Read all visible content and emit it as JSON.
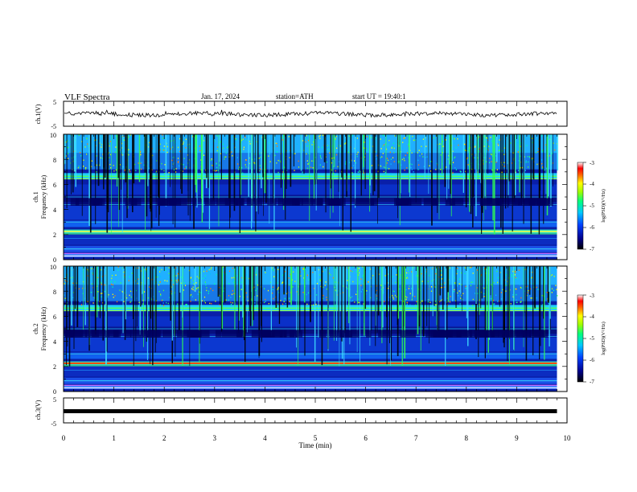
{
  "header": {
    "title": "VLF Spectra",
    "date": "Jan. 17, 2024",
    "station": "station=ATH",
    "start": "start UT = 19:40:1"
  },
  "chart_data": {
    "type": "heatmap",
    "xlabel": "Time (min)",
    "xlim": [
      0,
      10
    ],
    "xticks": [
      "0",
      "1",
      "2",
      "3",
      "4",
      "5",
      "6",
      "7",
      "8",
      "9",
      "10"
    ],
    "panels": [
      {
        "id": "ch1-waveform",
        "type": "line",
        "ylabel": "ch.1(V)",
        "ylim": [
          -5,
          5
        ],
        "yticks": [
          "5",
          "-5"
        ],
        "color": "#000000"
      },
      {
        "id": "ch1-spectrogram",
        "type": "heatmap",
        "ylabel_top": "ch.1",
        "ylabel": "Frequency (kHz)",
        "ylim": [
          0,
          10
        ],
        "yticks": [
          "0",
          "2",
          "4",
          "6",
          "8",
          "10"
        ],
        "colorbar": {
          "label": "log(PSD)(V²/Hz)",
          "ticks": [
            "-3",
            "-4",
            "-5",
            "-6",
            "-7"
          ],
          "range": [
            -7,
            -3
          ]
        }
      },
      {
        "id": "ch2-spectrogram",
        "type": "heatmap",
        "ylabel_top": "ch.2",
        "ylabel": "Frequency (kHz)",
        "ylim": [
          0,
          10
        ],
        "yticks": [
          "0",
          "2",
          "4",
          "6",
          "8",
          "10"
        ],
        "colorbar": {
          "label": "log(PSD)(V²/Hz)",
          "ticks": [
            "-3",
            "-4",
            "-5",
            "-6",
            "-7"
          ],
          "range": [
            -7,
            -3
          ]
        }
      },
      {
        "id": "ch3-waveform",
        "type": "line",
        "ylabel": "ch.3(V)",
        "ylim": [
          -5,
          5
        ],
        "yticks": [
          "5",
          "-5"
        ],
        "color": "#000000"
      }
    ],
    "data_end_min": 9.8,
    "colormap": [
      "#000080",
      "#0000ff",
      "#0080ff",
      "#00c0ff",
      "#00ffa0",
      "#40ff40",
      "#c0ff00",
      "#ffff00",
      "#ff8000",
      "#ff0000",
      "#ffffff"
    ]
  }
}
